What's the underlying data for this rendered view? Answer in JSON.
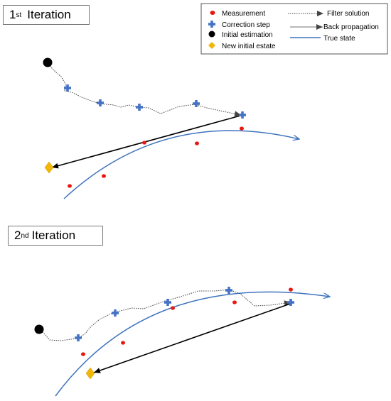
{
  "panels": {
    "first": {
      "number": "1",
      "suffix": "st",
      "word": "Iteration"
    },
    "second": {
      "number": "2",
      "suffix": "nd",
      "word": "Iteration"
    }
  },
  "legend": {
    "measurement": "Measurement",
    "correction": "Correction step",
    "initial": "Initial estimation",
    "new_initial": "New initial estate",
    "filter": "Filter solution",
    "back": "Back propagation",
    "true_state": "True state"
  },
  "colors": {
    "measurement": "#e8170f",
    "correction": "#4472c4",
    "initial": "#000000",
    "new_initial": "#f2b705",
    "true_state": "#3f73bd",
    "filter": "#444444",
    "back": "#000000"
  },
  "icons": [
    "red-dot-icon",
    "blue-cross-icon",
    "black-circle-icon",
    "yellow-diamond-icon"
  ]
}
